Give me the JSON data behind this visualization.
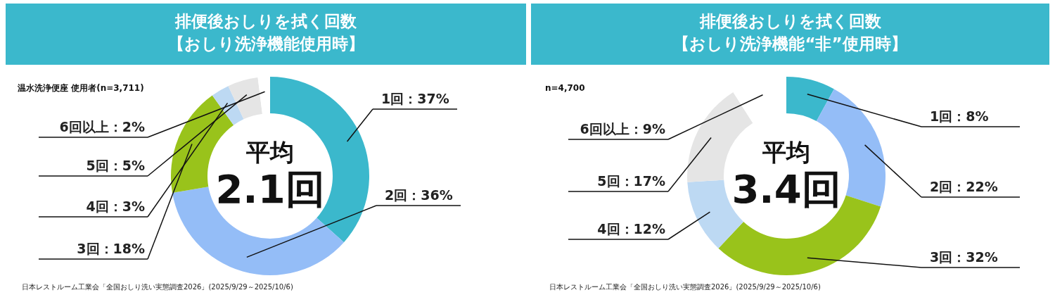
{
  "chart_data": [
    {
      "type": "donut",
      "title": "排便後おしりを拭く回数",
      "subtitle": "【おしり洗浄機能使用時】",
      "categories": [
        "1回",
        "2回",
        "3回",
        "4回",
        "5回",
        "6回以上"
      ],
      "values": [
        37,
        36,
        18,
        3,
        5,
        2
      ],
      "colors": [
        "#3bb8cc",
        "#94bdf7",
        "#99c31b",
        "#bdd9f3",
        "#e5e5e5",
        "#ffffff"
      ],
      "value_labels": [
        "：37%",
        "：36%",
        "：18%",
        "：3%",
        "：5%",
        "：2%"
      ],
      "annotations": [
        "温水洗浄便座 使用者(n=3,711)",
        "平均",
        "2.1回",
        "日本レストルーム工業会「全国おしり洗い実態調査2026」(2025/9/29～2025/10/6)"
      ]
    },
    {
      "type": "donut",
      "title": "排便後おしりを拭く回数",
      "subtitle": "【おしり洗浄機能“非”使用時】",
      "categories": [
        "1回",
        "2回",
        "3回",
        "4回",
        "5回",
        "6回以上"
      ],
      "values": [
        8,
        22,
        32,
        12,
        17,
        9
      ],
      "colors": [
        "#3bb8cc",
        "#94bdf7",
        "#99c31b",
        "#bdd9f3",
        "#e5e5e5",
        "#ffffff"
      ],
      "value_labels": [
        "：8%",
        "：22%",
        "：32%",
        "：12%",
        "：17%",
        "：9%"
      ],
      "annotations": [
        "n=4,700",
        "平均",
        "3.4回",
        "日本レストルーム工業会「全国おしり洗い実態調査2026」(2025/9/29～2025/10/6)"
      ]
    }
  ]
}
